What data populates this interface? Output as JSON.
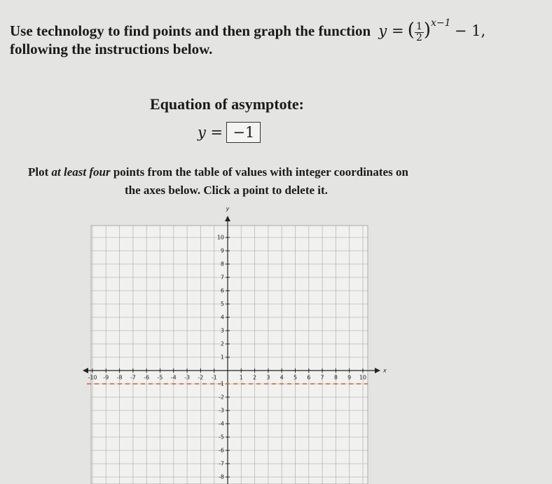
{
  "question": {
    "text_before": "Use technology to find points and then graph the function",
    "function": {
      "lhs": "y =",
      "numerator": "1",
      "denominator": "2",
      "exponent": "x−1",
      "rest": "− 1,"
    },
    "text_after": "following the instructions below."
  },
  "asymptote": {
    "label": "Equation of asymptote:",
    "lhs": "y =",
    "answer": "−1"
  },
  "instructions": {
    "part1": "Plot",
    "emphasis": "at least four",
    "part2": "points from the table of values with integer coordinates on",
    "line2": "the axes below. Click a point to delete it."
  },
  "graph": {
    "x_label": "x",
    "y_label": "y",
    "xlim": [
      -10,
      10
    ],
    "ylim": [
      -9,
      10
    ],
    "xticks": [
      -10,
      -9,
      -8,
      -7,
      -6,
      -5,
      -4,
      -3,
      -2,
      -1,
      1,
      2,
      3,
      4,
      5,
      6,
      7,
      8,
      9,
      10
    ],
    "yticks": [
      10,
      9,
      8,
      7,
      6,
      5,
      4,
      3,
      2,
      1,
      -1,
      -2,
      -3,
      -4,
      -5,
      -6,
      -7,
      -8
    ],
    "asymptote_y": -1
  }
}
